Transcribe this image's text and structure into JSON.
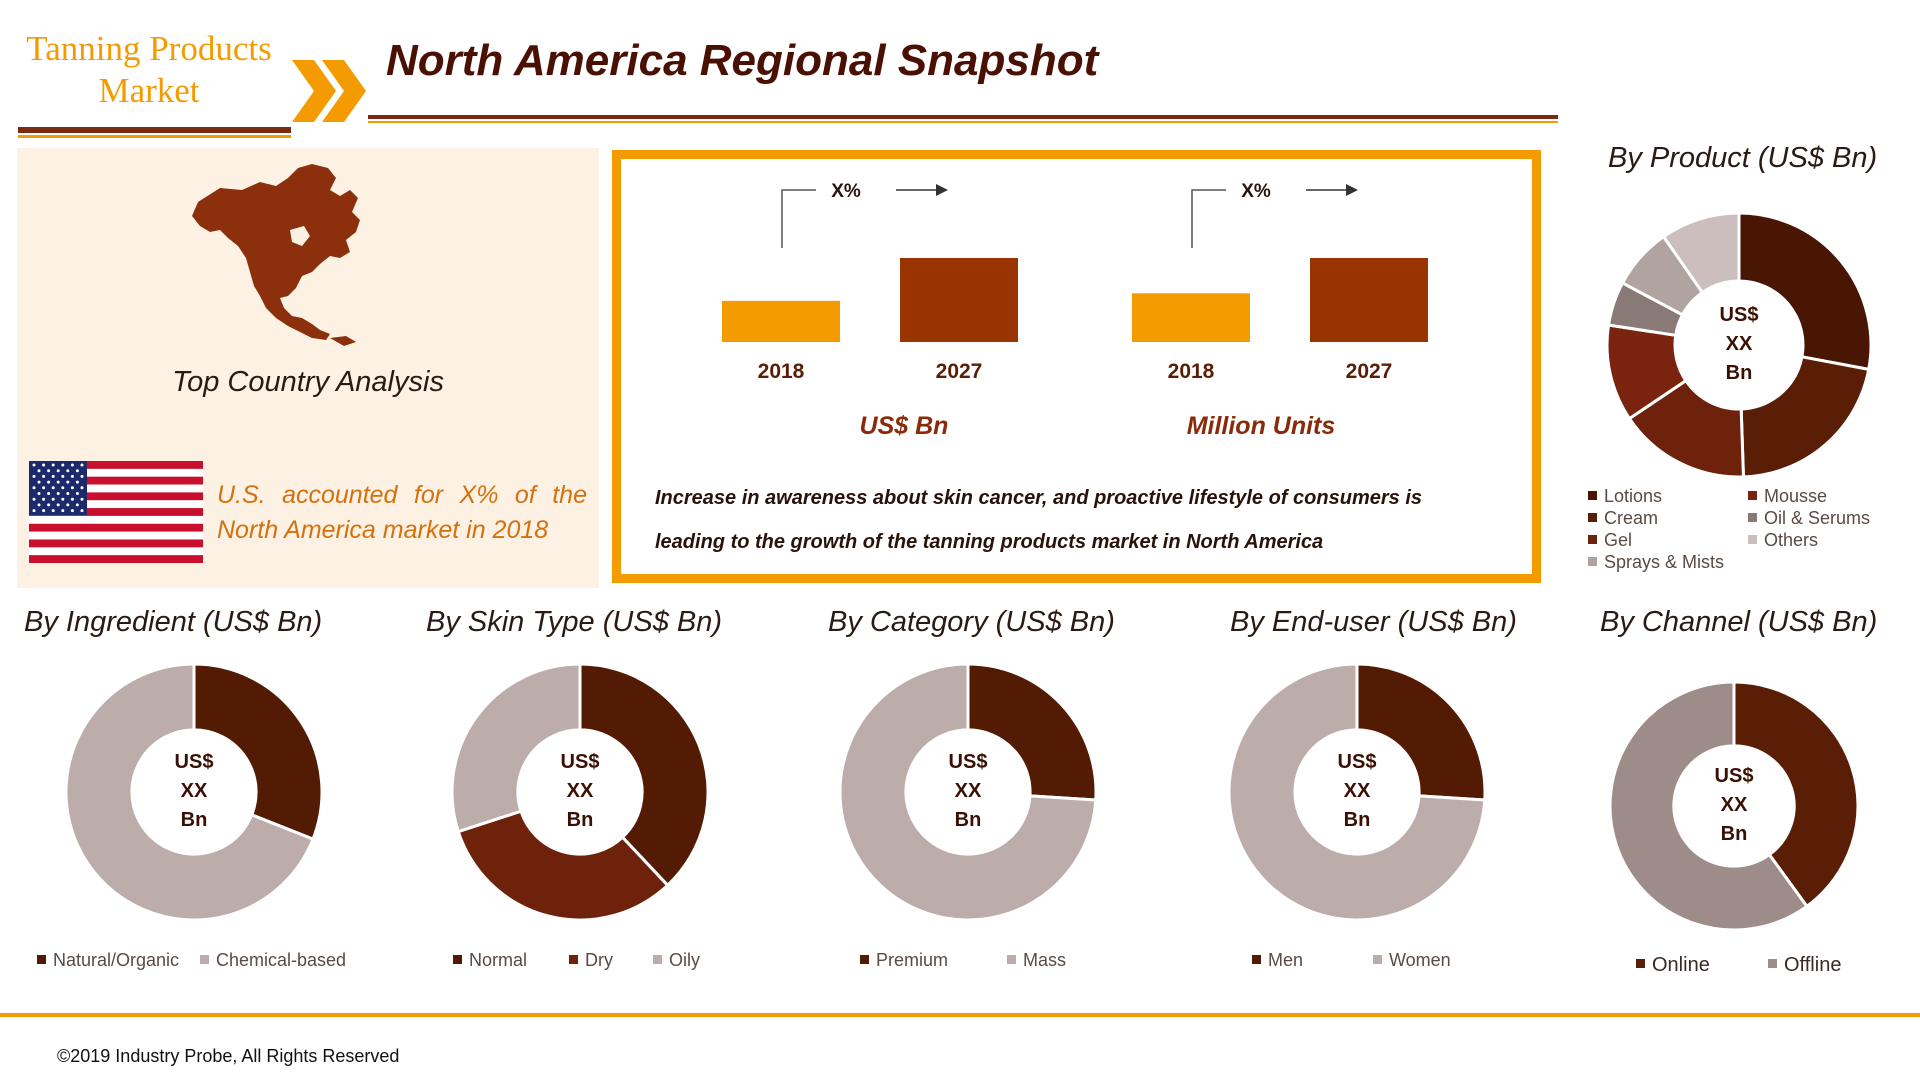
{
  "header": {
    "brand_line1": "Tanning Products",
    "brand_line2": "Market",
    "title": "North America Regional Snapshot"
  },
  "country_panel": {
    "title": "Top Country Analysis",
    "statement_line1": "U.S. accounted for X% of the",
    "statement_line2": "North America market in 2018"
  },
  "growth": {
    "note_line1": "Increase in awareness about skin cancer, and proactive lifestyle of consumers is",
    "note_line2": "leading to the growth of the tanning products market in North America",
    "colors": {
      "start": "#f39b00",
      "end": "#993300"
    }
  },
  "chart_data": [
    {
      "type": "bar",
      "id": "value",
      "categories": [
        "2018",
        "2027"
      ],
      "values": [
        0.49,
        1.0
      ],
      "unit_label": "US$ Bn",
      "growth_label": "X%"
    },
    {
      "type": "bar",
      "id": "volume",
      "categories": [
        "2018",
        "2027"
      ],
      "values": [
        0.58,
        1.0
      ],
      "unit_label": "Million Units",
      "growth_label": "X%"
    },
    {
      "type": "pie",
      "id": "product",
      "title": "By Product (US$ Bn)",
      "center_label": [
        "US$",
        "XX",
        "Bn"
      ],
      "labels": [
        "Lotions",
        "Cream",
        "Gel",
        "Mousse",
        "Oil & Serums",
        "Sprays & Mists",
        "Others"
      ],
      "values": [
        26,
        20,
        15,
        11,
        5,
        7,
        9
      ],
      "colors": [
        "#4a1604",
        "#5a1e06",
        "#6e220c",
        "#7a2410",
        "#8a7a77",
        "#b0a3a0",
        "#cbbebc"
      ],
      "legend_order": [
        0,
        1,
        2,
        5,
        3,
        4,
        6
      ]
    },
    {
      "type": "pie",
      "id": "ingredient",
      "title": "By Ingredient (US$ Bn)",
      "center_label": [
        "US$",
        "XX",
        "Bn"
      ],
      "labels": [
        "Natural/Organic",
        "Chemical-based"
      ],
      "values": [
        31,
        69
      ],
      "colors": [
        "#531b04",
        "#bcacaa"
      ]
    },
    {
      "type": "pie",
      "id": "skin_type",
      "title": "By Skin Type (US$ Bn)",
      "center_label": [
        "US$",
        "XX",
        "Bn"
      ],
      "labels": [
        "Normal",
        "Dry",
        "Oily"
      ],
      "values": [
        38,
        32,
        30
      ],
      "colors": [
        "#531b04",
        "#6e220c",
        "#bcacaa"
      ]
    },
    {
      "type": "pie",
      "id": "category",
      "title": "By Category (US$ Bn)",
      "center_label": [
        "US$",
        "XX",
        "Bn"
      ],
      "labels": [
        "Premium",
        "Mass"
      ],
      "values": [
        26,
        74
      ],
      "colors": [
        "#531b04",
        "#bcacaa"
      ]
    },
    {
      "type": "pie",
      "id": "end_user",
      "title": "By End-user (US$ Bn)",
      "center_label": [
        "US$",
        "XX",
        "Bn"
      ],
      "labels": [
        "Men",
        "Women"
      ],
      "values": [
        26,
        74
      ],
      "colors": [
        "#531b04",
        "#bcacaa"
      ]
    },
    {
      "type": "pie",
      "id": "channel",
      "title": "By Channel (US$ Bn)",
      "center_label": [
        "US$",
        "XX",
        "Bn"
      ],
      "labels": [
        "Online",
        "Offline"
      ],
      "values": [
        40,
        60
      ],
      "colors": [
        "#5a1e06",
        "#9e8c88"
      ]
    }
  ],
  "footer": {
    "copyright": "©2019 Industry Probe, All Rights Reserved"
  }
}
